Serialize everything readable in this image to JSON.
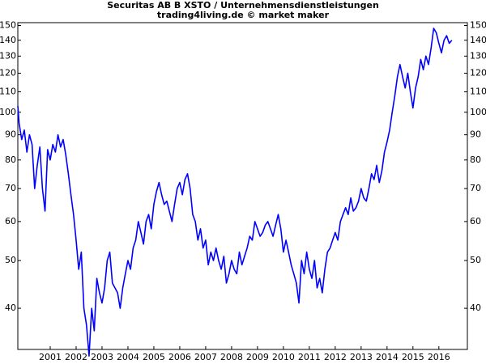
{
  "chart_data": {
    "type": "line",
    "title": "Securitas AB B XSTO / Unternehmensdienstleistungen",
    "subtitle": "trading4living.de © market maker",
    "log": true,
    "grid": false,
    "color": "#0000ff",
    "xlim": [
      2000.25,
      2017.6
    ],
    "ylim": [
      33,
      152
    ],
    "yticks": [
      40,
      50,
      60,
      70,
      80,
      90,
      100,
      110,
      120,
      130,
      140,
      150
    ],
    "xticks": [
      {
        "value": 2001.5,
        "label": "2001"
      },
      {
        "value": 2002.5,
        "label": "2002"
      },
      {
        "value": 2003.5,
        "label": "2003"
      },
      {
        "value": 2004.5,
        "label": "2004"
      },
      {
        "value": 2005.5,
        "label": "2005"
      },
      {
        "value": 2006.5,
        "label": "2006"
      },
      {
        "value": 2007.5,
        "label": "2007"
      },
      {
        "value": 2008.5,
        "label": "2008"
      },
      {
        "value": 2009.5,
        "label": "2009"
      },
      {
        "value": 2010.5,
        "label": "2010"
      },
      {
        "value": 2011.5,
        "label": "2011"
      },
      {
        "value": 2012.5,
        "label": "2012"
      },
      {
        "value": 2013.5,
        "label": "2013"
      },
      {
        "value": 2014.5,
        "label": "2014"
      },
      {
        "value": 2015.5,
        "label": "2015"
      },
      {
        "value": 2016.5,
        "label": "2016"
      }
    ],
    "x": [
      2000.25,
      2000.3,
      2000.4,
      2000.5,
      2000.6,
      2000.7,
      2000.8,
      2000.9,
      2001.0,
      2001.1,
      2001.2,
      2001.3,
      2001.4,
      2001.5,
      2001.6,
      2001.7,
      2001.8,
      2001.9,
      2002.0,
      2002.1,
      2002.2,
      2002.3,
      2002.4,
      2002.5,
      2002.6,
      2002.7,
      2002.8,
      2002.9,
      2003.0,
      2003.1,
      2003.2,
      2003.3,
      2003.4,
      2003.5,
      2003.6,
      2003.7,
      2003.8,
      2003.9,
      2004.0,
      2004.1,
      2004.2,
      2004.3,
      2004.4,
      2004.5,
      2004.6,
      2004.7,
      2004.8,
      2004.9,
      2005.0,
      2005.1,
      2005.2,
      2005.3,
      2005.4,
      2005.5,
      2005.6,
      2005.7,
      2005.8,
      2005.9,
      2006.0,
      2006.2,
      2006.3,
      2006.4,
      2006.5,
      2006.6,
      2006.7,
      2006.8,
      2006.9,
      2007.0,
      2007.1,
      2007.2,
      2007.3,
      2007.4,
      2007.5,
      2007.6,
      2007.7,
      2007.8,
      2007.9,
      2008.0,
      2008.1,
      2008.2,
      2008.3,
      2008.4,
      2008.5,
      2008.6,
      2008.7,
      2008.8,
      2008.9,
      2009.0,
      2009.1,
      2009.2,
      2009.3,
      2009.4,
      2009.5,
      2009.6,
      2009.7,
      2009.8,
      2009.9,
      2010.0,
      2010.1,
      2010.2,
      2010.3,
      2010.4,
      2010.5,
      2010.6,
      2010.7,
      2010.8,
      2010.9,
      2011.0,
      2011.1,
      2011.2,
      2011.3,
      2011.4,
      2011.5,
      2011.6,
      2011.7,
      2011.8,
      2011.9,
      2012.0,
      2012.1,
      2012.2,
      2012.3,
      2012.4,
      2012.5,
      2012.6,
      2012.7,
      2012.8,
      2012.9,
      2013.0,
      2013.1,
      2013.2,
      2013.3,
      2013.4,
      2013.5,
      2013.6,
      2013.7,
      2013.8,
      2013.9,
      2014.0,
      2014.1,
      2014.2,
      2014.3,
      2014.4,
      2014.5,
      2014.6,
      2014.7,
      2014.8,
      2014.9,
      2015.0,
      2015.1,
      2015.2,
      2015.3,
      2015.4,
      2015.5,
      2015.6,
      2015.7,
      2015.8,
      2015.9,
      2016.0,
      2016.1,
      2016.2,
      2016.3,
      2016.4,
      2016.5,
      2016.6,
      2016.7,
      2016.8,
      2016.9,
      2017.0
    ],
    "values": [
      103,
      95,
      88,
      92,
      83,
      90,
      86,
      70,
      78,
      85,
      70,
      63,
      84,
      80,
      86,
      83,
      90,
      85,
      88,
      82,
      75,
      68,
      62,
      55,
      48,
      52,
      40,
      37,
      32,
      40,
      36,
      46,
      43,
      41,
      44,
      50,
      52,
      45,
      44,
      43,
      40,
      44,
      47,
      50,
      48,
      53,
      55,
      60,
      57,
      54,
      60,
      62,
      58,
      65,
      69,
      72,
      68,
      65,
      66,
      60,
      65,
      70,
      72,
      68,
      73,
      75,
      70,
      62,
      60,
      55,
      58,
      53,
      55,
      49,
      52,
      50,
      53,
      50,
      48,
      51,
      45,
      47,
      50,
      48,
      47,
      52,
      49,
      51,
      53,
      56,
      55,
      60,
      58,
      56,
      57,
      59,
      60,
      58,
      56,
      59,
      62,
      58,
      52,
      55,
      52,
      49,
      47,
      45,
      41,
      50,
      47,
      52,
      48,
      46,
      50,
      44,
      46,
      43,
      48,
      52,
      53,
      55,
      57,
      55,
      60,
      62,
      64,
      62,
      67,
      63,
      64,
      66,
      70,
      67,
      66,
      70,
      75,
      73,
      78,
      72,
      76,
      83,
      87,
      92,
      100,
      108,
      118,
      125,
      118,
      112,
      120,
      110,
      102,
      112,
      118,
      128,
      122,
      130,
      125,
      135,
      148,
      145,
      138,
      132,
      140,
      143,
      138,
      140
    ]
  }
}
